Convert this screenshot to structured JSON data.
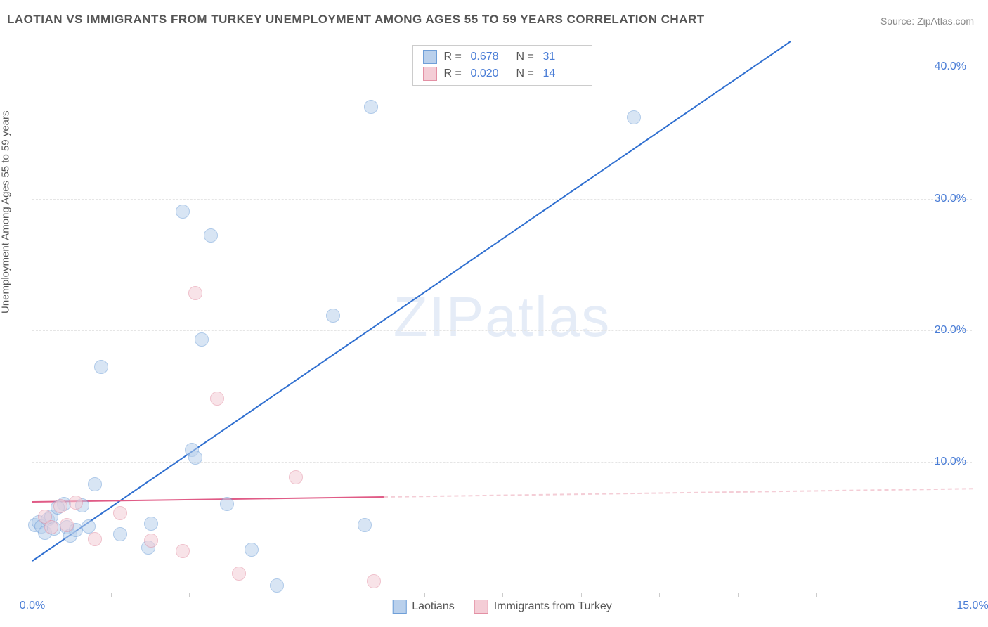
{
  "title": "LAOTIAN VS IMMIGRANTS FROM TURKEY UNEMPLOYMENT AMONG AGES 55 TO 59 YEARS CORRELATION CHART",
  "source": "Source: ZipAtlas.com",
  "y_axis_label": "Unemployment Among Ages 55 to 59 years",
  "watermark_a": "ZIP",
  "watermark_b": "atlas",
  "chart": {
    "type": "scatter",
    "xlim": [
      0,
      15
    ],
    "ylim": [
      0,
      42
    ],
    "x_ticks": [
      0.0,
      15.0
    ],
    "x_tick_labels": [
      "0.0%",
      "15.0%"
    ],
    "x_minor_ticks": [
      1.25,
      2.5,
      3.75,
      5.0,
      6.25,
      7.5,
      8.75,
      10.0,
      11.25,
      12.5,
      13.75
    ],
    "y_gridlines": [
      10.0,
      20.0,
      30.0,
      40.0
    ],
    "y_tick_labels": [
      "10.0%",
      "20.0%",
      "30.0%",
      "40.0%"
    ],
    "background_color": "#ffffff",
    "grid_color": "#e5e5e5",
    "axis_color": "#cccccc",
    "tick_label_color": "#4a7dd6",
    "marker_radius": 10,
    "marker_opacity": 0.55,
    "series": [
      {
        "name": "Laotians",
        "color_fill": "#b9d0ec",
        "color_stroke": "#6f9fd8",
        "line_color": "#2f6fd0",
        "R": "0.678",
        "N": "31",
        "regression": {
          "x1": 0.0,
          "y1": 2.5,
          "x2": 12.1,
          "y2": 42.0,
          "solid_to_x": 12.1
        },
        "points": [
          [
            0.05,
            5.2
          ],
          [
            0.1,
            5.4
          ],
          [
            0.15,
            5.1
          ],
          [
            0.2,
            4.6
          ],
          [
            0.25,
            5.6
          ],
          [
            0.3,
            5.8
          ],
          [
            0.35,
            4.9
          ],
          [
            0.5,
            6.8
          ],
          [
            0.55,
            5.0
          ],
          [
            0.6,
            4.4
          ],
          [
            0.7,
            4.8
          ],
          [
            0.8,
            6.7
          ],
          [
            1.0,
            8.3
          ],
          [
            1.1,
            17.2
          ],
          [
            1.4,
            4.5
          ],
          [
            1.85,
            3.5
          ],
          [
            1.9,
            5.3
          ],
          [
            2.4,
            29.0
          ],
          [
            2.55,
            10.9
          ],
          [
            2.6,
            10.3
          ],
          [
            2.7,
            19.3
          ],
          [
            2.85,
            27.2
          ],
          [
            3.1,
            6.8
          ],
          [
            3.5,
            3.3
          ],
          [
            3.9,
            0.6
          ],
          [
            4.8,
            21.1
          ],
          [
            5.3,
            5.2
          ],
          [
            5.4,
            37.0
          ],
          [
            9.6,
            36.2
          ],
          [
            0.4,
            6.5
          ],
          [
            0.9,
            5.1
          ]
        ]
      },
      {
        "name": "Immigrants from Turkey",
        "color_fill": "#f4cdd6",
        "color_stroke": "#e390a4",
        "line_color": "#e05b86",
        "R": "0.020",
        "N": "14",
        "regression": {
          "x1": 0.0,
          "y1": 7.0,
          "x2": 15.0,
          "y2": 8.0,
          "solid_to_x": 5.6
        },
        "points": [
          [
            0.2,
            5.8
          ],
          [
            0.3,
            5.0
          ],
          [
            0.45,
            6.6
          ],
          [
            0.55,
            5.2
          ],
          [
            0.7,
            6.9
          ],
          [
            1.0,
            4.1
          ],
          [
            1.4,
            6.1
          ],
          [
            1.9,
            4.0
          ],
          [
            2.4,
            3.2
          ],
          [
            2.6,
            22.8
          ],
          [
            2.95,
            14.8
          ],
          [
            3.3,
            1.5
          ],
          [
            4.2,
            8.8
          ],
          [
            5.45,
            0.9
          ]
        ]
      }
    ]
  },
  "stats_legend": {
    "rows": [
      {
        "swatch_fill": "#b9d0ec",
        "swatch_stroke": "#6f9fd8",
        "r_label": "R =",
        "r_val": "0.678",
        "n_label": "N =",
        "n_val": "31"
      },
      {
        "swatch_fill": "#f4cdd6",
        "swatch_stroke": "#e390a4",
        "r_label": "R =",
        "r_val": "0.020",
        "n_label": "N =",
        "n_val": "14"
      }
    ]
  },
  "bottom_legend": {
    "items": [
      {
        "swatch_fill": "#b9d0ec",
        "swatch_stroke": "#6f9fd8",
        "label": "Laotians"
      },
      {
        "swatch_fill": "#f4cdd6",
        "swatch_stroke": "#e390a4",
        "label": "Immigrants from Turkey"
      }
    ]
  }
}
